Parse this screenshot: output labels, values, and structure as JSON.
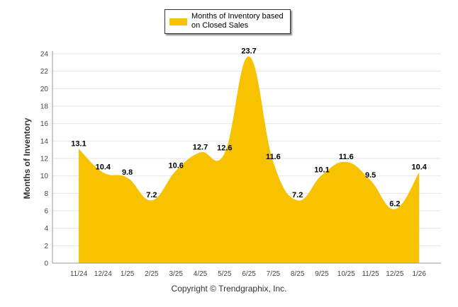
{
  "chart_data": {
    "type": "area",
    "title": "",
    "xlabel": "",
    "ylabel": "Months of Inventory",
    "categories": [
      "11/24",
      "12/24",
      "1/25",
      "2/25",
      "3/25",
      "4/25",
      "5/25",
      "6/25",
      "7/25",
      "8/25",
      "9/25",
      "10/25",
      "11/25",
      "12/25",
      "1/26"
    ],
    "series": [
      {
        "name": "Months of Inventory based on Closed Sales",
        "values": [
          13.1,
          10.4,
          9.8,
          7.2,
          10.6,
          12.7,
          12.6,
          23.7,
          11.6,
          7.2,
          10.1,
          11.6,
          9.5,
          6.2,
          10.4
        ]
      }
    ],
    "ylim": [
      0,
      24
    ],
    "yticks": [
      0,
      2,
      4,
      6,
      8,
      10,
      12,
      14,
      16,
      18,
      20,
      22,
      24
    ],
    "grid": true,
    "legend": "top-center",
    "color": "#f7c300"
  },
  "footer": {
    "copyright": "Copyright © Trendgraphix, Inc."
  }
}
